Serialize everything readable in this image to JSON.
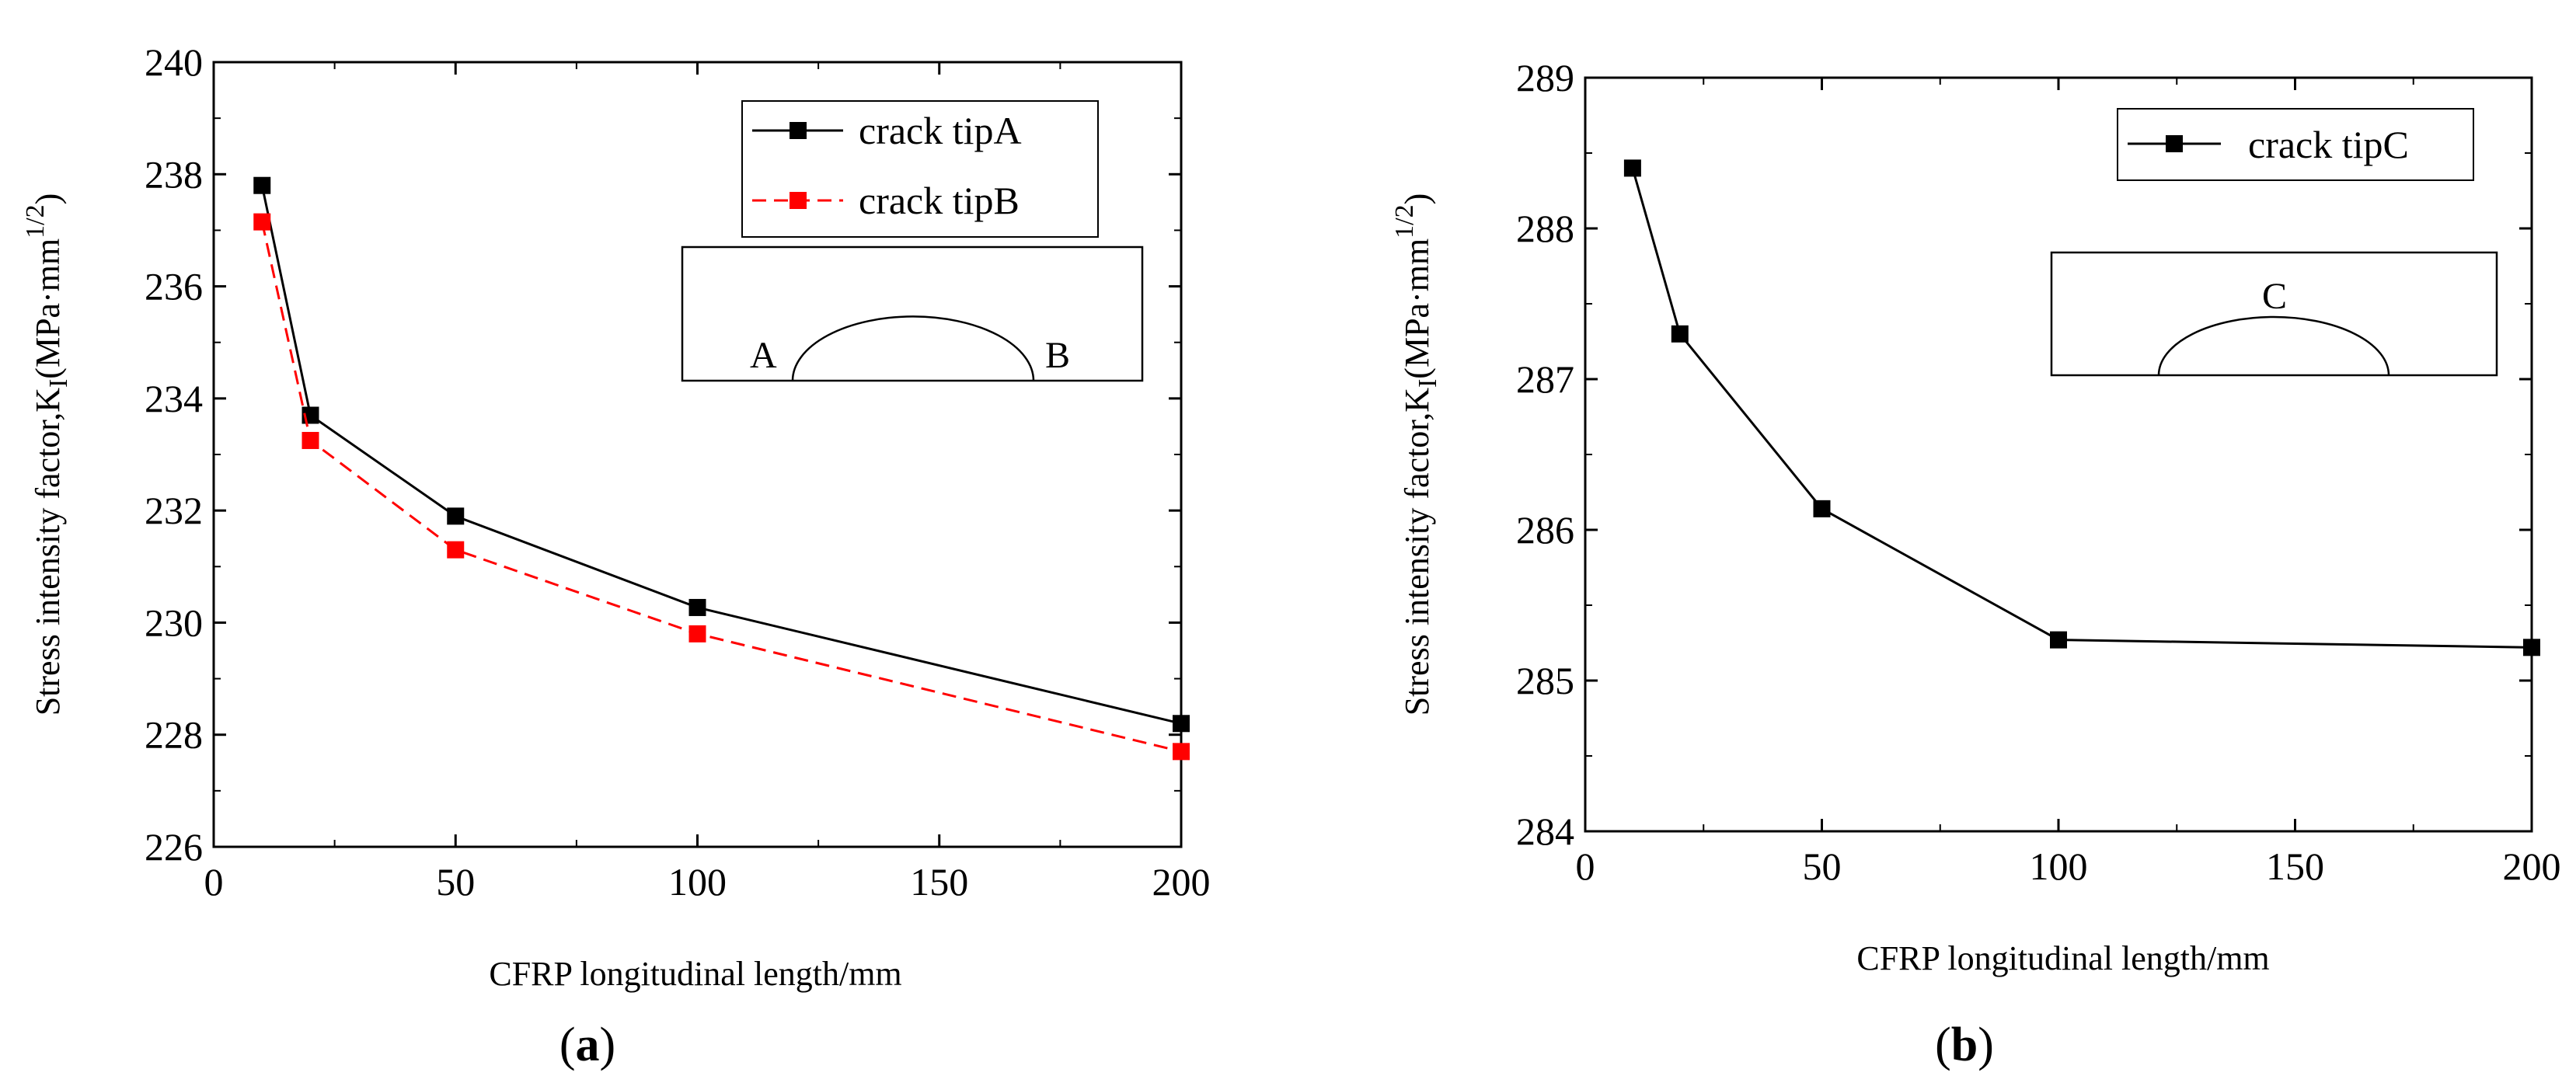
{
  "chart_data": [
    {
      "type": "line",
      "panel": "a",
      "caption_letter": "a",
      "xlabel": "CFRP longitudinal length/mm",
      "ylabel_main": "Stress intensity factor,K",
      "ylabel_sub": "I",
      "ylabel_unit": "(MPa·mm",
      "ylabel_exp": "1/2",
      "ylabel_close": ")",
      "xlim": [
        0,
        200
      ],
      "ylim": [
        226,
        240
      ],
      "xticks": [
        0,
        50,
        100,
        150,
        200
      ],
      "yticks": [
        226,
        228,
        230,
        232,
        234,
        236,
        238,
        240
      ],
      "series": [
        {
          "name": "crack tipA",
          "color": "#000000",
          "dash": "solid",
          "x": [
            10,
            20,
            50,
            100,
            200
          ],
          "y": [
            237.8,
            233.7,
            231.9,
            230.27,
            228.2
          ]
        },
        {
          "name": "crack tipB",
          "color": "#ff0000",
          "dash": "dashed",
          "x": [
            10,
            20,
            50,
            100,
            200
          ],
          "y": [
            237.15,
            233.25,
            231.3,
            229.8,
            227.7
          ]
        }
      ],
      "inset_labels": [
        "A",
        "B"
      ]
    },
    {
      "type": "line",
      "panel": "b",
      "caption_letter": "b",
      "xlabel": "CFRP longitudinal length/mm",
      "ylabel_main": "Stress intensity factor,K",
      "ylabel_sub": "I",
      "ylabel_unit": "(MPa·mm",
      "ylabel_exp": "1/2",
      "ylabel_close": ")",
      "xlim": [
        0,
        200
      ],
      "ylim": [
        284,
        289
      ],
      "xticks": [
        0,
        50,
        100,
        150,
        200
      ],
      "yticks": [
        284,
        285,
        286,
        287,
        288,
        289
      ],
      "series": [
        {
          "name": "crack tipC",
          "color": "#000000",
          "dash": "solid",
          "x": [
            10,
            20,
            50,
            100,
            200
          ],
          "y": [
            288.4,
            287.3,
            286.14,
            285.27,
            285.22
          ]
        }
      ],
      "inset_labels": [
        "C"
      ]
    }
  ]
}
